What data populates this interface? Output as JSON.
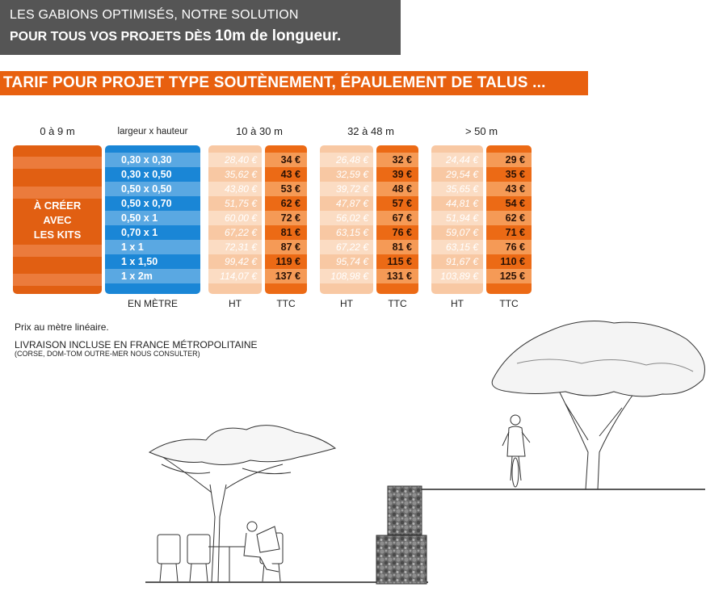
{
  "banner": {
    "line1": "LES GABIONS OPTIMISÉS, NOTRE SOLUTION",
    "line2_a": "POUR TOUS VOS PROJETS DÈS",
    "line2_b": "10m de longueur."
  },
  "title": "TARIF POUR PROJET TYPE SOUTÈNEMENT, ÉPAULEMENT DE TALUS ...",
  "headers": {
    "kits": "0 à 9 m",
    "dims": "largeur x hauteur",
    "range1": "10 à 30 m",
    "range2": "32 à 48 m",
    "range3": "> 50 m"
  },
  "kits_label": {
    "l1": "À CRÉER",
    "l2": "AVEC",
    "l3": "LES KITS"
  },
  "dimensions": [
    "0,30 x 0,30",
    "0,30 x 0,50",
    "0,50 x 0,50",
    "0,50 x 0,70",
    "0,50 x 1",
    "0,70 x 1",
    "1 x 1",
    "1 x 1,50",
    "1 x 2m"
  ],
  "ranges": [
    {
      "ht": [
        "28,40 €",
        "35,62 €",
        "43,80 €",
        "51,75 €",
        "60,00 €",
        "67,22 €",
        "72,31 €",
        "99,42 €",
        "114,07 €"
      ],
      "ttc": [
        "34 €",
        "43 €",
        "53 €",
        "62 €",
        "72 €",
        "81 €",
        "87 €",
        "119 €",
        "137 €"
      ]
    },
    {
      "ht": [
        "26,48 €",
        "32,59 €",
        "39,72 €",
        "47,87 €",
        "56,02 €",
        "63,15 €",
        "67,22 €",
        "95,74 €",
        "108,98 €"
      ],
      "ttc": [
        "32 €",
        "39 €",
        "48 €",
        "57 €",
        "67 €",
        "76 €",
        "81 €",
        "115 €",
        "131 €"
      ]
    },
    {
      "ht": [
        "24,44 €",
        "29,54 €",
        "35,65 €",
        "44,81 €",
        "51,94 €",
        "59,07 €",
        "63,15 €",
        "91,67 €",
        "103,89 €"
      ],
      "ttc": [
        "29 €",
        "35 €",
        "43 €",
        "54 €",
        "62 €",
        "71 €",
        "76 €",
        "110 €",
        "125 €"
      ]
    }
  ],
  "footers": {
    "dims": "EN MÈTRE",
    "ht": "HT",
    "ttc": "TTC"
  },
  "notes": {
    "price": "Prix au mètre linéaire.",
    "delivery": "LIVRAISON INCLUSE EN FRANCE MÉTROPOLITAINE",
    "delivery_sub": "(CORSE, DOM-TOM OUTRE-MER NOUS CONSULTER)"
  },
  "colors": {
    "orange": "#e8600f",
    "blue": "#1a86d6",
    "grey": "#555555"
  }
}
